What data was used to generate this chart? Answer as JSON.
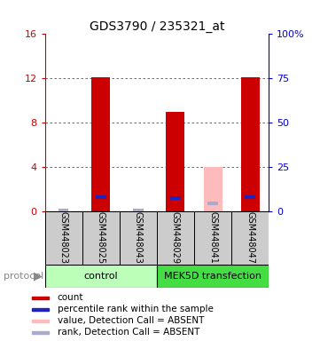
{
  "title": "GDS3790 / 235321_at",
  "samples": [
    "GSM448023",
    "GSM448025",
    "GSM448043",
    "GSM448029",
    "GSM448041",
    "GSM448047"
  ],
  "bar_values_red": [
    0.0,
    12.1,
    0.0,
    9.0,
    0.0,
    12.1
  ],
  "bar_values_pink": [
    0.0,
    0.0,
    0.0,
    0.0,
    4.0,
    0.0
  ],
  "rank_values_blue": [
    0.5,
    8.3,
    0.3,
    7.5,
    0.0,
    8.1
  ],
  "rank_values_lightblue": [
    0.5,
    0.0,
    0.3,
    0.0,
    4.4,
    0.0
  ],
  "absent_mask": [
    true,
    false,
    true,
    false,
    true,
    false
  ],
  "ylim_left": [
    0,
    16
  ],
  "ylim_right": [
    0,
    100
  ],
  "yticks_left": [
    0,
    4,
    8,
    12,
    16
  ],
  "yticks_right": [
    0,
    25,
    50,
    75,
    100
  ],
  "yticklabels_right": [
    "0",
    "25",
    "50",
    "75",
    "100%"
  ],
  "red_color": "#cc0000",
  "pink_color": "#ffbbbb",
  "blue_color": "#2222bb",
  "lightblue_color": "#aaaacc",
  "left_tick_color": "#cc0000",
  "right_tick_color": "#0000cc",
  "grid_color": "#555555",
  "control_color": "#bbffbb",
  "transfection_color": "#44dd44",
  "sample_box_color": "#cccccc",
  "groups": [
    {
      "label": "control"
    },
    {
      "label": "MEK5D transfection"
    }
  ],
  "legend_labels": [
    "count",
    "percentile rank within the sample",
    "value, Detection Call = ABSENT",
    "rank, Detection Call = ABSENT"
  ],
  "legend_colors": [
    "#cc0000",
    "#2222bb",
    "#ffbbbb",
    "#aaaacc"
  ]
}
